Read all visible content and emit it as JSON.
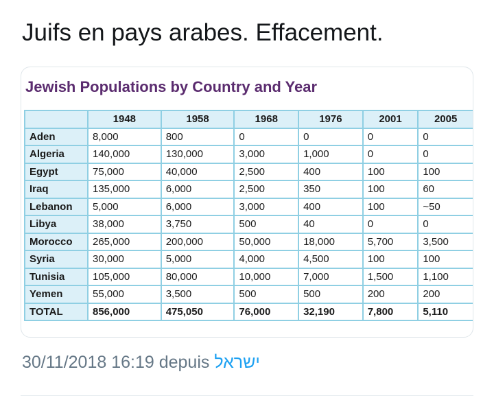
{
  "post": {
    "text": "Juifs en pays arabes. Effacement.",
    "timestamp": "30/11/2018 16:19 depuis",
    "source": "ישראל"
  },
  "table": {
    "title": "Jewish Populations by Country and Year",
    "columns": [
      "1948",
      "1958",
      "1968",
      "1976",
      "2001",
      "2005"
    ],
    "rows": [
      [
        "Aden",
        "8,000",
        "800",
        "0",
        "0",
        "0",
        "0"
      ],
      [
        "Algeria",
        "140,000",
        "130,000",
        "3,000",
        "1,000",
        "0",
        "0"
      ],
      [
        "Egypt",
        "75,000",
        "40,000",
        "2,500",
        "400",
        "100",
        "100"
      ],
      [
        "Iraq",
        "135,000",
        "6,000",
        "2,500",
        "350",
        "100",
        "60"
      ],
      [
        "Lebanon",
        "5,000",
        "6,000",
        "3,000",
        "400",
        "100",
        "~50"
      ],
      [
        "Libya",
        "38,000",
        "3,750",
        "500",
        "40",
        "0",
        "0"
      ],
      [
        "Morocco",
        "265,000",
        "200,000",
        "50,000",
        "18,000",
        "5,700",
        "3,500"
      ],
      [
        "Syria",
        "30,000",
        "5,000",
        "4,000",
        "4,500",
        "100",
        "100"
      ],
      [
        "Tunisia",
        "105,000",
        "80,000",
        "10,000",
        "7,000",
        "1,500",
        "1,100"
      ],
      [
        "Yemen",
        "55,000",
        "3,500",
        "500",
        "500",
        "200",
        "200"
      ]
    ],
    "total": [
      "TOTAL",
      "856,000",
      "475,050",
      "76,000",
      "32,190",
      "7,800",
      "5,110"
    ]
  }
}
